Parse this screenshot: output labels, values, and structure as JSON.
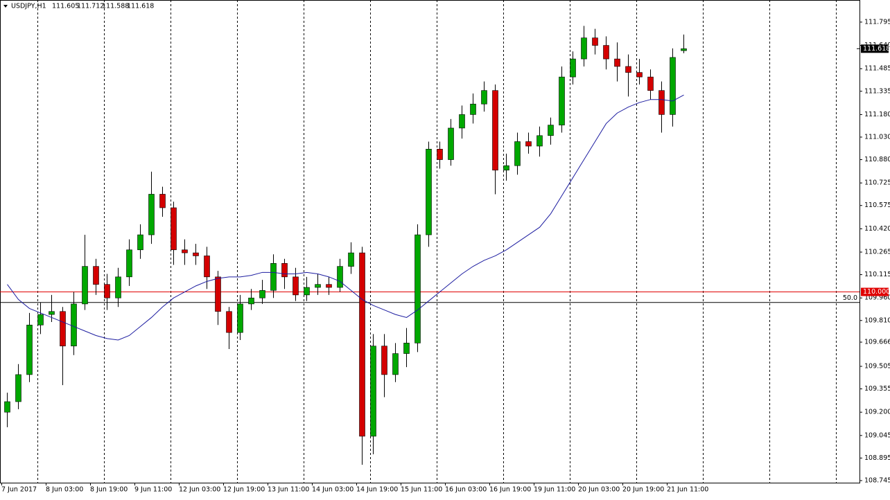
{
  "chart_data": {
    "type": "candlestick",
    "symbol": "USDJPY,H1",
    "time_labels": [
      "7 Jun 2017",
      "8 Jun 03:00",
      "8 Jun 19:00",
      "9 Jun 11:00",
      "12 Jun 03:00",
      "12 Jun 19:00",
      "13 Jun 11:00",
      "14 Jun 03:00",
      "14 Jun 19:00",
      "15 Jun 11:00",
      "16 Jun 03:00",
      "16 Jun 19:00",
      "19 Jun 11:00",
      "20 Jun 03:00",
      "20 Jun 19:00",
      "21 Jun 11:00"
    ],
    "open": [
      109.2,
      109.27,
      109.45,
      109.78,
      109.85,
      109.87,
      109.64,
      109.92,
      110.17,
      110.05,
      109.96,
      110.1,
      110.28,
      110.38,
      110.65,
      110.56,
      110.28,
      110.26,
      110.24,
      110.1,
      109.87,
      109.73,
      109.92,
      109.96,
      110.01,
      110.19,
      110.1,
      109.98,
      110.03,
      110.05,
      110.03,
      110.17,
      110.26,
      109.04,
      109.64,
      109.45,
      109.59,
      109.66,
      110.38,
      110.95,
      110.88,
      111.09,
      111.18,
      111.25,
      111.34,
      110.81,
      110.84,
      111.0,
      110.97,
      111.04,
      111.11,
      111.43,
      111.55,
      111.69,
      111.64,
      111.55,
      111.5,
      111.46,
      111.43,
      111.34,
      111.18,
      111.605
    ],
    "high": [
      109.33,
      109.52,
      109.86,
      109.93,
      109.98,
      109.9,
      110.0,
      110.38,
      110.22,
      110.12,
      110.16,
      110.35,
      110.45,
      110.8,
      110.7,
      110.6,
      110.35,
      110.32,
      110.3,
      110.14,
      109.9,
      109.98,
      110.02,
      110.08,
      110.25,
      110.22,
      110.16,
      110.1,
      110.12,
      110.1,
      110.22,
      110.33,
      110.3,
      109.72,
      109.72,
      109.66,
      109.76,
      110.45,
      111.0,
      111.0,
      111.15,
      111.24,
      111.32,
      111.4,
      111.38,
      110.92,
      111.06,
      111.06,
      111.1,
      111.16,
      111.5,
      111.6,
      111.77,
      111.75,
      111.7,
      111.66,
      111.58,
      111.55,
      111.48,
      111.4,
      111.62,
      111.712
    ],
    "low": [
      109.1,
      109.22,
      109.4,
      109.72,
      109.8,
      109.38,
      109.58,
      109.88,
      109.98,
      109.88,
      109.9,
      110.04,
      110.22,
      110.32,
      110.5,
      110.18,
      110.18,
      110.18,
      110.02,
      109.78,
      109.62,
      109.68,
      109.88,
      109.92,
      109.96,
      110.02,
      109.94,
      109.94,
      109.98,
      109.98,
      110.0,
      110.12,
      108.85,
      108.92,
      109.3,
      109.4,
      109.5,
      109.6,
      110.3,
      110.82,
      110.84,
      111.02,
      111.12,
      111.2,
      110.65,
      110.74,
      110.78,
      110.92,
      110.9,
      110.98,
      111.06,
      111.38,
      111.5,
      111.58,
      111.48,
      111.4,
      111.3,
      111.38,
      111.28,
      111.06,
      111.1,
      111.588
    ],
    "close": [
      109.27,
      109.45,
      109.78,
      109.85,
      109.87,
      109.64,
      109.92,
      110.17,
      110.05,
      109.96,
      110.1,
      110.28,
      110.38,
      110.65,
      110.56,
      110.28,
      110.26,
      110.24,
      110.1,
      109.87,
      109.73,
      109.92,
      109.96,
      110.01,
      110.19,
      110.1,
      109.98,
      110.03,
      110.05,
      110.03,
      110.17,
      110.26,
      109.04,
      109.64,
      109.45,
      109.59,
      109.66,
      110.38,
      110.95,
      110.88,
      111.09,
      111.18,
      111.25,
      111.34,
      110.81,
      110.84,
      111.0,
      110.97,
      111.04,
      111.11,
      111.43,
      111.55,
      111.69,
      111.64,
      111.55,
      111.5,
      111.46,
      111.43,
      111.34,
      111.18,
      111.56,
      111.618
    ],
    "up_color": "#00a800",
    "down_color": "#d40000",
    "ma": {
      "color": "#1c1ca0",
      "values": [
        110.05,
        109.95,
        109.89,
        109.86,
        109.83,
        109.8,
        109.77,
        109.74,
        109.71,
        109.69,
        109.68,
        109.71,
        109.77,
        109.83,
        109.9,
        109.96,
        110.0,
        110.04,
        110.07,
        110.09,
        110.1,
        110.1,
        110.11,
        110.13,
        110.13,
        110.12,
        110.12,
        110.13,
        110.12,
        110.1,
        110.07,
        110.01,
        109.95,
        109.91,
        109.88,
        109.85,
        109.83,
        109.88,
        109.94,
        110.0,
        110.06,
        110.12,
        110.17,
        110.21,
        110.24,
        110.28,
        110.33,
        110.38,
        110.43,
        110.52,
        110.64,
        110.76,
        110.88,
        111.0,
        111.12,
        111.19,
        111.23,
        111.26,
        111.28,
        111.28,
        111.27,
        111.31
      ]
    },
    "levels": [
      {
        "value": 110.0,
        "label": "110.000",
        "color": "#e00000"
      },
      {
        "value": 109.93,
        "label": "50.0",
        "color": "#000000"
      }
    ],
    "ylim": [
      108.731,
      111.942
    ],
    "yticks": [
      111.795,
      {
        "value": 111.64,
        "label": "111.640"
      },
      111.485,
      111.335,
      {
        "value": 111.18,
        "label": "111.180"
      },
      {
        "value": 111.03,
        "label": "111.030"
      },
      {
        "value": 110.88,
        "label": "110.880"
      },
      110.725,
      110.575,
      {
        "value": 110.42,
        "label": "110.420"
      },
      110.265,
      110.115,
      {
        "value": 109.96,
        "label": "109.960"
      },
      {
        "value": 109.81,
        "label": "109.810"
      },
      109.666,
      109.505,
      109.355,
      {
        "value": 109.2,
        "label": "109.200"
      },
      109.045,
      108.895,
      108.745
    ]
  }
}
